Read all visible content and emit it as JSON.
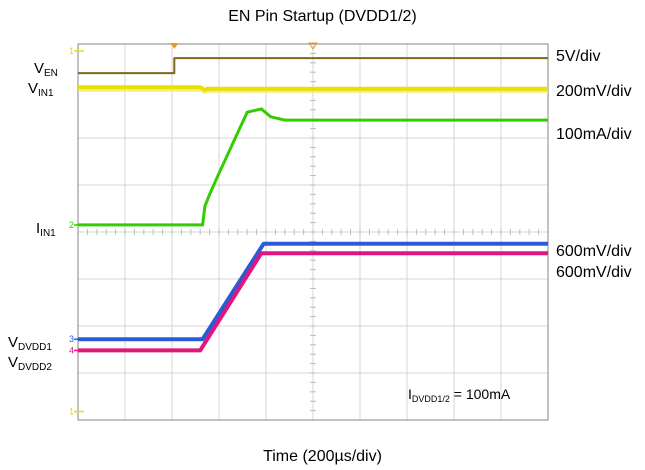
{
  "title": "EN Pin Startup (DVDD1/2)",
  "xlabel": "Time (200µs/div)",
  "note": {
    "main": "I",
    "sub": "DVDD1/2",
    "rest": " = 100mA"
  },
  "colors": {
    "grid": "#d4d4d4",
    "EN": "#7a6a1a",
    "VIN1": "#e8e000",
    "IIN1": "#33cc00",
    "VDVDD1": "#2a5bd7",
    "VDVDD2": "#e0157e"
  },
  "chart_data": {
    "type": "line",
    "title": "EN Pin Startup (DVDD1/2)",
    "xlabel": "Time (200µs/div)",
    "ylabel": "",
    "x_divisions": 10,
    "y_divisions": 8,
    "grid": true,
    "x_range_div": [
      0,
      10
    ],
    "y_range_div": [
      0,
      8
    ],
    "series": [
      {
        "name": "VEN",
        "label_main": "V",
        "label_sub": "EN",
        "scale": "5V/div",
        "marker": "",
        "x": [
          0,
          2.05,
          2.05,
          10
        ],
        "y": [
          7.38,
          7.38,
          7.7,
          7.7
        ]
      },
      {
        "name": "VIN1",
        "label_main": "V",
        "label_sub": "IN1",
        "scale": "200mV/div",
        "marker": "",
        "x": [
          0,
          2.6,
          2.7,
          2.75,
          10
        ],
        "y": [
          7.08,
          7.08,
          7.02,
          7.05,
          7.05
        ]
      },
      {
        "name": "IIN1",
        "label_main": "I",
        "label_sub": "IN1",
        "scale": "100mA/div",
        "marker": "2",
        "x": [
          0,
          2.65,
          2.7,
          2.8,
          3.0,
          3.6,
          3.9,
          4.1,
          4.4,
          10
        ],
        "y": [
          4.15,
          4.15,
          4.55,
          4.8,
          5.25,
          6.55,
          6.62,
          6.45,
          6.38,
          6.38
        ]
      },
      {
        "name": "VDVDD1",
        "label_main": "V",
        "label_sub": "DVDD1",
        "scale": "600mV/div",
        "marker": "3",
        "x": [
          0,
          2.65,
          3.95,
          10
        ],
        "y": [
          1.72,
          1.72,
          3.75,
          3.75
        ]
      },
      {
        "name": "VDVDD2",
        "label_main": "V",
        "label_sub": "DVDD2",
        "scale": "600mV/div",
        "marker": "4",
        "x": [
          0,
          2.6,
          3.9,
          10
        ],
        "y": [
          1.48,
          1.48,
          3.55,
          3.55
        ]
      }
    ],
    "marker_channel_1": "1"
  }
}
